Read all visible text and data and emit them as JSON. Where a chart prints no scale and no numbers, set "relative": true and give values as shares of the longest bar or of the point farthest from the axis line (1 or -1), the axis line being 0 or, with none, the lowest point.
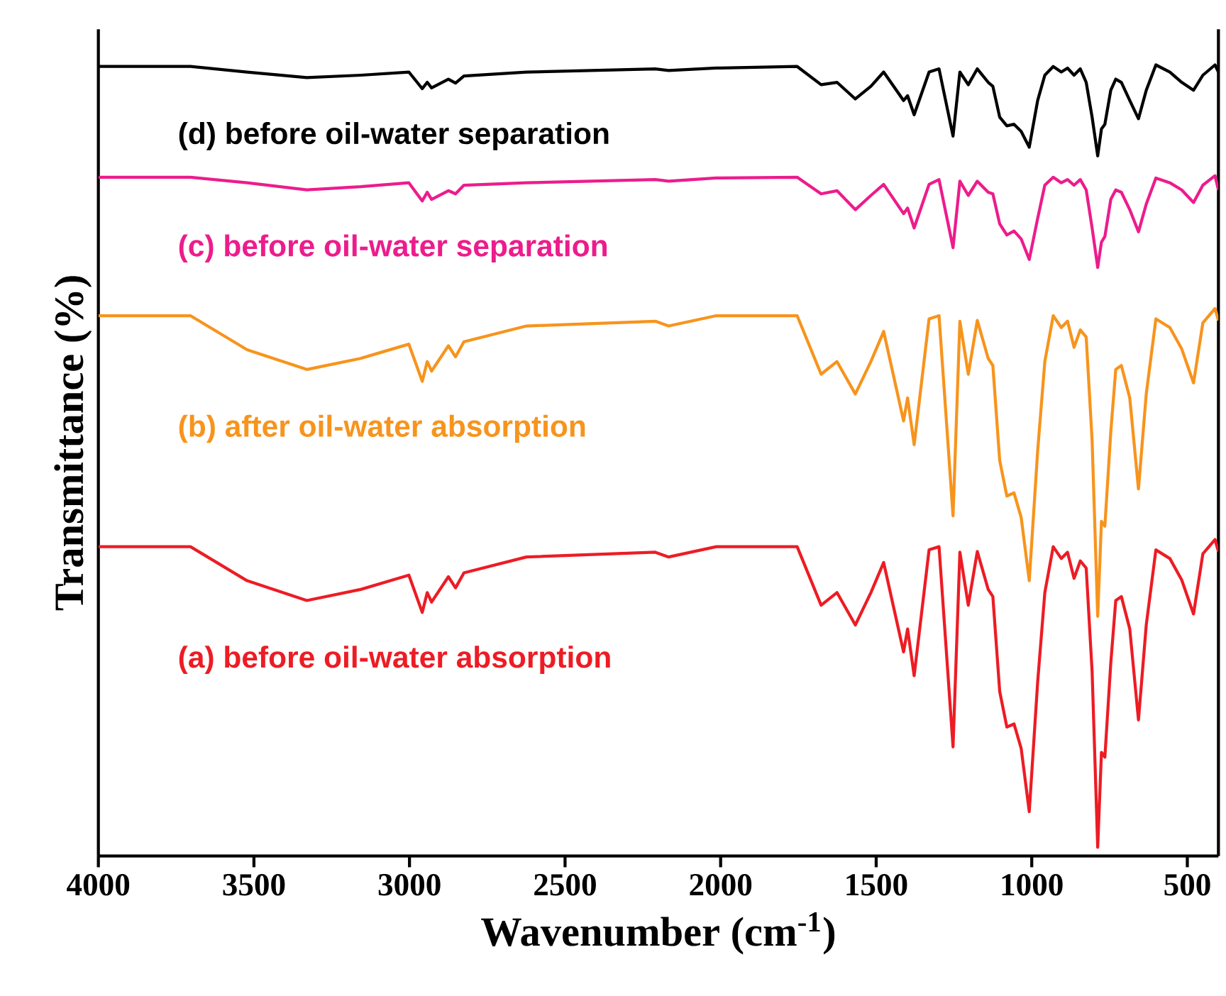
{
  "chart_data": {
    "type": "line",
    "relative": true,
    "xlabel": "Wavenumber (cm$^{-1}$)",
    "ylabel": "Transmittance (%)",
    "xlim": [
      4000,
      400
    ],
    "xticks": [
      4000,
      3500,
      3000,
      2500,
      2000,
      1500,
      1000,
      500
    ],
    "x": [
      4000,
      3704,
      3522,
      3330,
      3157,
      3002,
      2959,
      2943,
      2929,
      2875,
      2852,
      2825,
      2624,
      2210,
      2167,
      2014,
      1754,
      1677,
      1626,
      1567,
      1517,
      1476,
      1412,
      1399,
      1378,
      1330,
      1298,
      1253,
      1231,
      1204,
      1175,
      1140,
      1125,
      1103,
      1080,
      1057,
      1034,
      1008,
      981,
      958,
      931,
      905,
      885,
      864,
      844,
      825,
      806,
      788,
      776,
      765,
      746,
      730,
      712,
      685,
      657,
      632,
      601,
      556,
      518,
      480,
      450,
      411,
      400
    ],
    "series": [
      {
        "name": "(a) before oil-water absorption",
        "color": "#ed1c24",
        "values": [
          0.391,
          0.391,
          0.348,
          0.323,
          0.337,
          0.355,
          0.308,
          0.333,
          0.321,
          0.353,
          0.339,
          0.358,
          0.378,
          0.384,
          0.378,
          0.391,
          0.391,
          0.317,
          0.333,
          0.292,
          0.333,
          0.371,
          0.258,
          0.287,
          0.228,
          0.387,
          0.391,
          0.138,
          0.384,
          0.317,
          0.385,
          0.337,
          0.328,
          0.208,
          0.163,
          0.167,
          0.136,
          0.056,
          0.22,
          0.333,
          0.391,
          0.376,
          0.384,
          0.351,
          0.373,
          0.364,
          0.233,
          0.011,
          0.131,
          0.125,
          0.244,
          0.323,
          0.328,
          0.287,
          0.172,
          0.292,
          0.387,
          0.376,
          0.349,
          0.306,
          0.382,
          0.4,
          0.385
        ]
      },
      {
        "name": "(b) after oil-water absorption",
        "color": "#f7941d",
        "values": [
          0.683,
          0.683,
          0.64,
          0.615,
          0.629,
          0.647,
          0.6,
          0.625,
          0.613,
          0.645,
          0.631,
          0.65,
          0.67,
          0.676,
          0.67,
          0.683,
          0.683,
          0.609,
          0.625,
          0.584,
          0.625,
          0.663,
          0.55,
          0.579,
          0.52,
          0.679,
          0.683,
          0.43,
          0.676,
          0.609,
          0.677,
          0.629,
          0.62,
          0.5,
          0.455,
          0.459,
          0.428,
          0.348,
          0.512,
          0.625,
          0.683,
          0.668,
          0.676,
          0.643,
          0.665,
          0.656,
          0.525,
          0.303,
          0.423,
          0.417,
          0.536,
          0.615,
          0.62,
          0.579,
          0.464,
          0.584,
          0.679,
          0.668,
          0.641,
          0.598,
          0.674,
          0.692,
          0.677
        ]
      },
      {
        "name": "(c) before oil-water separation",
        "color": "#ec1c8c",
        "values": [
          0.858,
          0.858,
          0.851,
          0.842,
          0.846,
          0.851,
          0.828,
          0.839,
          0.83,
          0.841,
          0.837,
          0.848,
          0.851,
          0.855,
          0.853,
          0.857,
          0.858,
          0.837,
          0.841,
          0.817,
          0.835,
          0.849,
          0.812,
          0.819,
          0.794,
          0.849,
          0.855,
          0.769,
          0.853,
          0.835,
          0.853,
          0.839,
          0.837,
          0.799,
          0.785,
          0.79,
          0.78,
          0.754,
          0.806,
          0.848,
          0.858,
          0.851,
          0.855,
          0.848,
          0.855,
          0.842,
          0.794,
          0.744,
          0.776,
          0.783,
          0.83,
          0.842,
          0.839,
          0.817,
          0.789,
          0.824,
          0.857,
          0.851,
          0.842,
          0.826,
          0.848,
          0.86,
          0.842
        ]
      },
      {
        "name": "(d) before oil-water separation",
        "color": "#000000",
        "values": [
          0.998,
          0.998,
          0.991,
          0.984,
          0.987,
          0.991,
          0.97,
          0.978,
          0.971,
          0.982,
          0.977,
          0.986,
          0.991,
          0.995,
          0.993,
          0.996,
          0.998,
          0.975,
          0.978,
          0.957,
          0.973,
          0.991,
          0.955,
          0.961,
          0.937,
          0.991,
          0.995,
          0.91,
          0.991,
          0.975,
          0.995,
          0.978,
          0.973,
          0.934,
          0.923,
          0.925,
          0.916,
          0.896,
          0.955,
          0.987,
          0.998,
          0.991,
          0.996,
          0.987,
          0.995,
          0.978,
          0.934,
          0.885,
          0.919,
          0.925,
          0.968,
          0.982,
          0.978,
          0.955,
          0.932,
          0.968,
          1.0,
          0.991,
          0.978,
          0.968,
          0.987,
          1.0,
          0.991
        ]
      }
    ]
  }
}
